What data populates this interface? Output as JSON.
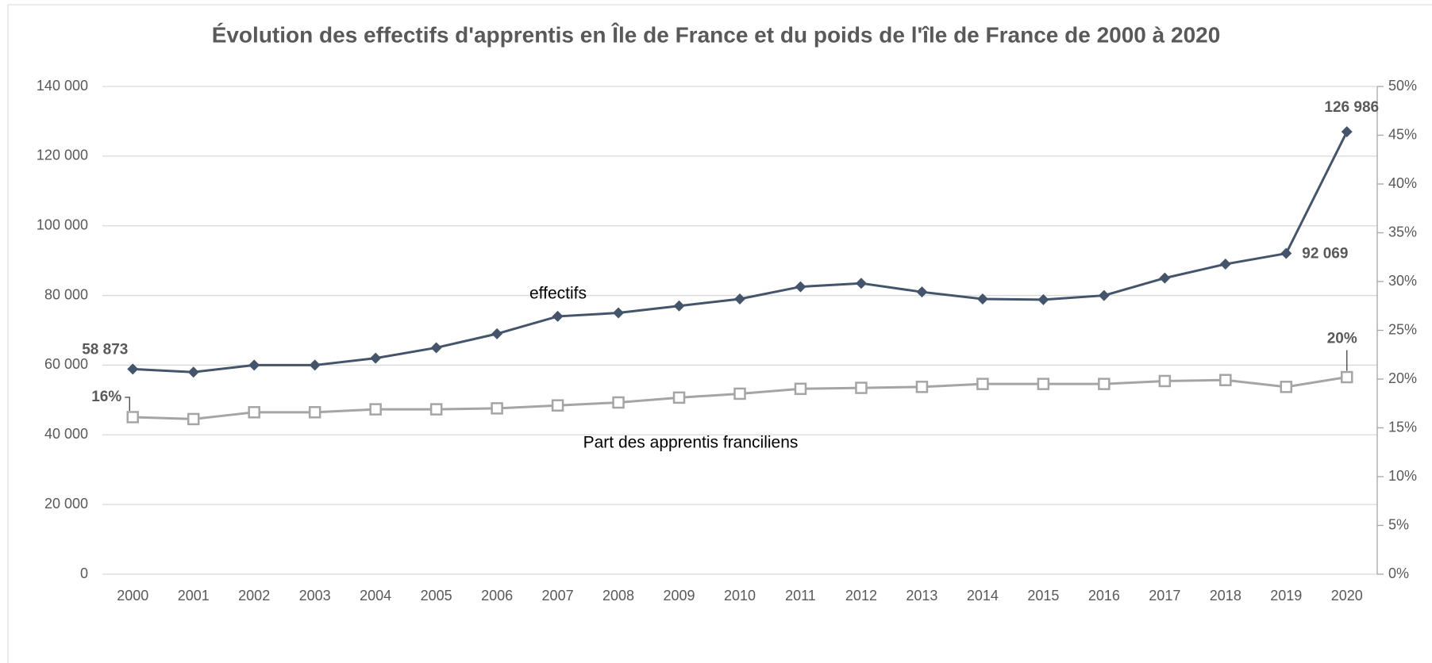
{
  "chart_data": {
    "type": "line",
    "title": "Évolution des effectifs d'apprentis en Île de France et du poids de l'île de France de 2000 à 2020",
    "categories": [
      "2000",
      "2001",
      "2002",
      "2003",
      "2004",
      "2005",
      "2006",
      "2007",
      "2008",
      "2009",
      "2010",
      "2011",
      "2012",
      "2013",
      "2014",
      "2015",
      "2016",
      "2017",
      "2018",
      "2019",
      "2020"
    ],
    "series": [
      {
        "name": "effectifs",
        "color": "#44546a",
        "marker": "diamond",
        "values": [
          58873,
          58000,
          60000,
          60000,
          62000,
          65000,
          69000,
          74000,
          75000,
          77000,
          79000,
          82500,
          83500,
          81000,
          79000,
          78800,
          80000,
          85000,
          89000,
          92069,
          126986
        ],
        "value_labels": [
          "58 873",
          null,
          null,
          null,
          null,
          null,
          null,
          null,
          null,
          null,
          null,
          null,
          null,
          null,
          null,
          null,
          null,
          null,
          null,
          "92 069",
          "126 986"
        ]
      },
      {
        "name": "Part des apprentis franciliens",
        "color": "#a5a5a5",
        "marker": "square",
        "axis": "y2",
        "values": [
          16.1,
          15.9,
          16.6,
          16.6,
          16.9,
          16.9,
          17.0,
          17.3,
          17.6,
          18.1,
          18.5,
          19.0,
          19.1,
          19.2,
          19.5,
          19.5,
          19.5,
          19.8,
          19.9,
          19.2,
          20.2
        ],
        "value_labels": [
          "16%",
          null,
          null,
          null,
          null,
          null,
          null,
          null,
          null,
          null,
          null,
          null,
          null,
          null,
          null,
          null,
          null,
          null,
          null,
          null,
          "20%"
        ]
      }
    ],
    "ylim": [
      0,
      140000
    ],
    "yticks": [
      0,
      {
        "value": 20000,
        "label": "20 000"
      },
      {
        "value": 40000,
        "label": "40 000"
      },
      {
        "value": 60000,
        "label": "60 000"
      },
      {
        "value": 80000,
        "label": "80 000"
      },
      {
        "value": 100000,
        "label": "100 000"
      },
      {
        "value": 120000,
        "label": "120 000"
      },
      {
        "value": 140000,
        "label": "140 000"
      }
    ],
    "y2lim": [
      0,
      50
    ],
    "y2ticks": [
      {
        "value": 0,
        "label": "0%"
      },
      {
        "value": 5,
        "label": "5%"
      },
      {
        "value": 10,
        "label": "10%"
      },
      {
        "value": 15,
        "label": "15%"
      },
      {
        "value": 20,
        "label": "20%"
      },
      {
        "value": 25,
        "label": "25%"
      },
      {
        "value": 30,
        "label": "30%"
      },
      {
        "value": 35,
        "label": "35%"
      },
      {
        "value": 40,
        "label": "40%"
      },
      {
        "value": 45,
        "label": "45%"
      },
      {
        "value": 50,
        "label": "50%"
      }
    ],
    "grid": true
  }
}
